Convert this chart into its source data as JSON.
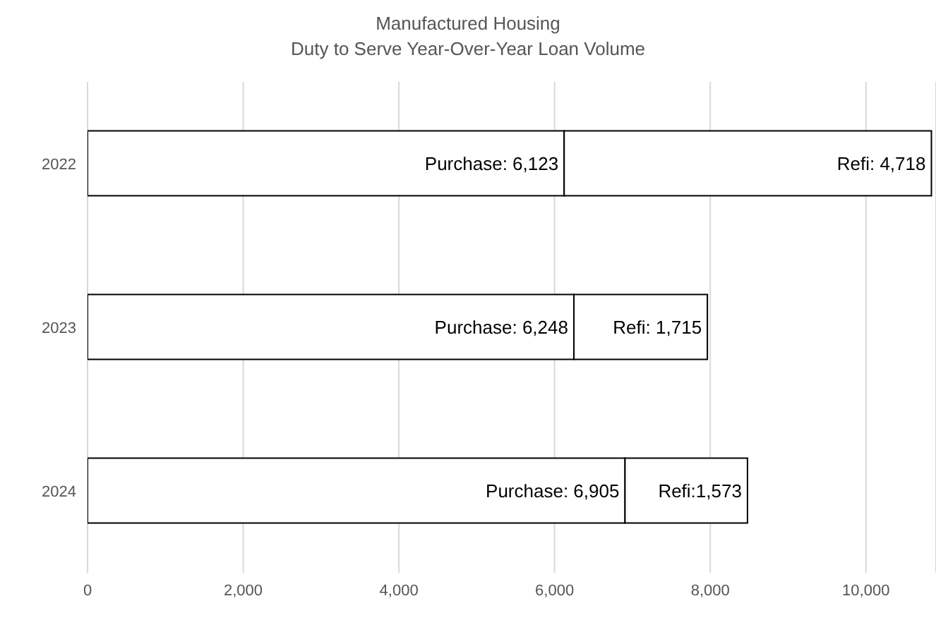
{
  "chart_data": {
    "type": "bar",
    "title": "Manufactured Housing",
    "subtitle": "Duty to Serve Year-Over-Year Loan Volume",
    "orientation": "horizontal",
    "stacked": true,
    "categories": [
      "2022",
      "2023",
      "2024"
    ],
    "series": [
      {
        "color": "#ffffff",
        "values": [
          6123,
          6248,
          6905
        ],
        "value_labels": [
          "Purchase: 6,123",
          "Purchase: 6,248",
          "Purchase: 6,905"
        ]
      },
      {
        "color": "#ffffff",
        "values": [
          4718,
          1715,
          1573
        ],
        "value_labels": [
          "Refi: 4,718",
          "Refi: 1,715",
          "Refi:1,573"
        ]
      }
    ],
    "xlim": [
      0,
      10900
    ],
    "xticks": [
      {
        "value": 0,
        "label": "0"
      },
      {
        "value": 2000,
        "label": "2,000"
      },
      {
        "value": 4000,
        "label": "4,000"
      },
      {
        "value": 6000,
        "label": "6,000"
      },
      {
        "value": 8000,
        "label": "8,000"
      },
      {
        "value": 10000,
        "label": "10,000"
      }
    ],
    "grid": "x",
    "legend": false
  }
}
